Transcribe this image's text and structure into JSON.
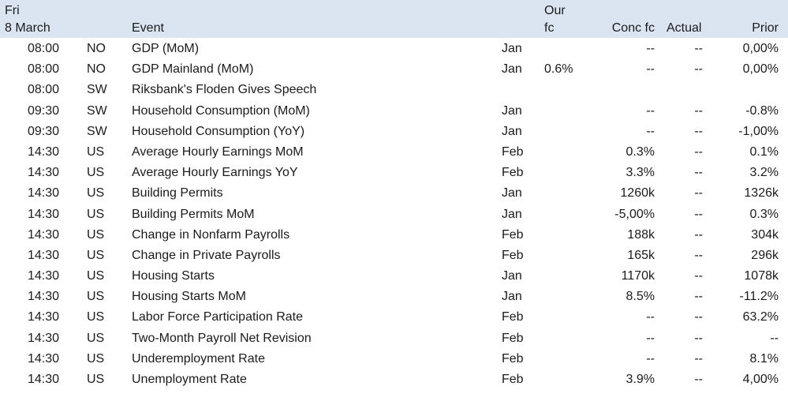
{
  "header": {
    "day": "Fri",
    "date": "8 March",
    "event": "Event",
    "our_fc_line1": "Our",
    "our_fc_line2": "fc",
    "conc_fc": "Conc fc",
    "actual": "Actual",
    "prior": "Prior"
  },
  "rows": [
    {
      "time": "08:00",
      "country": "NO",
      "event": "GDP (MoM)",
      "month": "Jan",
      "our_fc": "",
      "conc_fc": "--",
      "actual": "--",
      "prior": "0,00%"
    },
    {
      "time": "08:00",
      "country": "NO",
      "event": "GDP Mainland (MoM)",
      "month": "Jan",
      "our_fc": "0.6%",
      "conc_fc": "--",
      "actual": "--",
      "prior": "0,00%"
    },
    {
      "time": "08:00",
      "country": "SW",
      "event": "Riksbank's Floden Gives Speech",
      "month": "",
      "our_fc": "",
      "conc_fc": "",
      "actual": "",
      "prior": ""
    },
    {
      "time": "09:30",
      "country": "SW",
      "event": "Household Consumption (MoM)",
      "month": "Jan",
      "our_fc": "",
      "conc_fc": "--",
      "actual": "--",
      "prior": "-0.8%"
    },
    {
      "time": "09:30",
      "country": "SW",
      "event": "Household Consumption (YoY)",
      "month": "Jan",
      "our_fc": "",
      "conc_fc": "--",
      "actual": "--",
      "prior": "-1,00%"
    },
    {
      "time": "14:30",
      "country": "US",
      "event": "Average Hourly Earnings MoM",
      "month": "Feb",
      "our_fc": "",
      "conc_fc": "0.3%",
      "actual": "--",
      "prior": "0.1%"
    },
    {
      "time": "14:30",
      "country": "US",
      "event": "Average Hourly Earnings YoY",
      "month": "Feb",
      "our_fc": "",
      "conc_fc": "3.3%",
      "actual": "--",
      "prior": "3.2%"
    },
    {
      "time": "14:30",
      "country": "US",
      "event": "Building Permits",
      "month": "Jan",
      "our_fc": "",
      "conc_fc": "1260k",
      "actual": "--",
      "prior": "1326k"
    },
    {
      "time": "14:30",
      "country": "US",
      "event": "Building Permits MoM",
      "month": "Jan",
      "our_fc": "",
      "conc_fc": "-5,00%",
      "actual": "--",
      "prior": "0.3%"
    },
    {
      "time": "14:30",
      "country": "US",
      "event": "Change in Nonfarm Payrolls",
      "month": "Feb",
      "our_fc": "",
      "conc_fc": "188k",
      "actual": "--",
      "prior": "304k"
    },
    {
      "time": "14:30",
      "country": "US",
      "event": "Change in Private Payrolls",
      "month": "Feb",
      "our_fc": "",
      "conc_fc": "165k",
      "actual": "--",
      "prior": "296k"
    },
    {
      "time": "14:30",
      "country": "US",
      "event": "Housing Starts",
      "month": "Jan",
      "our_fc": "",
      "conc_fc": "1170k",
      "actual": "--",
      "prior": "1078k"
    },
    {
      "time": "14:30",
      "country": "US",
      "event": "Housing Starts MoM",
      "month": "Jan",
      "our_fc": "",
      "conc_fc": "8.5%",
      "actual": "--",
      "prior": "-11.2%"
    },
    {
      "time": "14:30",
      "country": "US",
      "event": "Labor Force Participation Rate",
      "month": "Feb",
      "our_fc": "",
      "conc_fc": "--",
      "actual": "--",
      "prior": "63.2%"
    },
    {
      "time": "14:30",
      "country": "US",
      "event": "Two-Month Payroll Net Revision",
      "month": "Feb",
      "our_fc": "",
      "conc_fc": "--",
      "actual": "--",
      "prior": "--"
    },
    {
      "time": "14:30",
      "country": "US",
      "event": "Underemployment Rate",
      "month": "Feb",
      "our_fc": "",
      "conc_fc": "--",
      "actual": "--",
      "prior": "8.1%"
    },
    {
      "time": "14:30",
      "country": "US",
      "event": "Unemployment Rate",
      "month": "Feb",
      "our_fc": "",
      "conc_fc": "3.9%",
      "actual": "--",
      "prior": "4,00%"
    }
  ]
}
